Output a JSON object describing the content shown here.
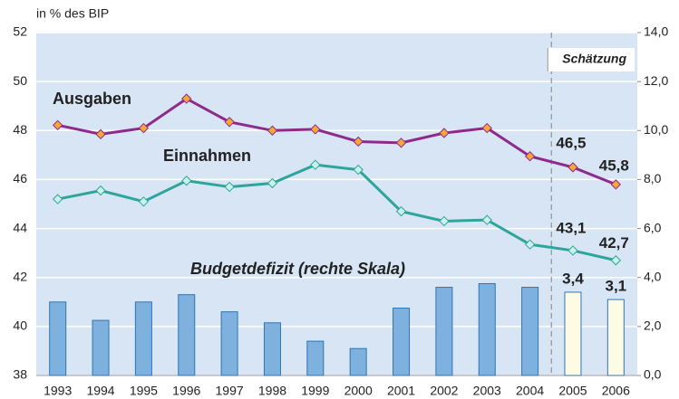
{
  "chart_data": {
    "type": "line-bar",
    "subtitle": "in % des BIP",
    "categories": [
      "1993",
      "1994",
      "1995",
      "1996",
      "1997",
      "1998",
      "1999",
      "2000",
      "2001",
      "2002",
      "2003",
      "2004",
      "2005",
      "2006"
    ],
    "ylim": [
      38,
      52
    ],
    "yticks": [
      38,
      40,
      42,
      44,
      46,
      48,
      50,
      52
    ],
    "y2lim": [
      0,
      14
    ],
    "y2ticks": [
      {
        "value": 0,
        "label": "0,0"
      },
      {
        "value": 2,
        "label": "2,0"
      },
      {
        "value": 4,
        "label": "4,0"
      },
      {
        "value": 6,
        "label": "6,0"
      },
      {
        "value": 8,
        "label": "8,0"
      },
      {
        "value": 10,
        "label": "10,0"
      },
      {
        "value": 12,
        "label": "12,0"
      },
      {
        "value": 14,
        "label": "14,0"
      }
    ],
    "grid": true,
    "forecast_start": "2005",
    "forecast_label": "Schätzung",
    "series": [
      {
        "name": "Ausgaben",
        "type": "line",
        "color": "#8e2a8c",
        "marker_color": "#f5a835",
        "values": [
          48.22,
          47.85,
          48.1,
          49.3,
          48.35,
          48.0,
          48.05,
          47.55,
          47.5,
          47.9,
          48.1,
          46.95,
          46.5,
          45.8
        ],
        "value_labels": [
          null,
          null,
          null,
          null,
          null,
          null,
          null,
          null,
          null,
          null,
          null,
          null,
          "46,5",
          "45,8"
        ]
      },
      {
        "name": "Einnahmen",
        "type": "line",
        "color": "#2ea59a",
        "marker_color": "#c9f1ea",
        "values": [
          45.2,
          45.55,
          45.1,
          45.95,
          45.7,
          45.85,
          46.6,
          46.4,
          44.7,
          44.3,
          44.35,
          43.35,
          43.1,
          42.7
        ],
        "value_labels": [
          null,
          null,
          null,
          null,
          null,
          null,
          null,
          null,
          null,
          null,
          null,
          null,
          "43,1",
          "42,7"
        ]
      },
      {
        "name": "Budgetdefizit (rechte Skala)",
        "type": "bar",
        "axis": "y2",
        "color": "#7fb1df",
        "edge_color": "#2f75b5",
        "forecast_color": "#fdfbe3",
        "label_color": "#1f6fb3",
        "values": [
          3.0,
          2.25,
          3.0,
          3.3,
          2.6,
          2.15,
          1.4,
          1.1,
          2.75,
          3.6,
          3.75,
          3.6,
          3.4,
          3.1
        ],
        "value_labels": [
          null,
          null,
          null,
          null,
          null,
          null,
          null,
          null,
          null,
          null,
          null,
          null,
          "3,4",
          "3,1"
        ]
      }
    ]
  }
}
